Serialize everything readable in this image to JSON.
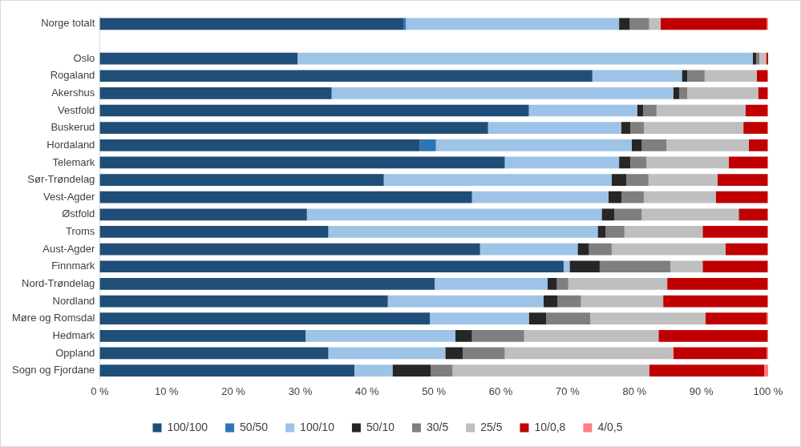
{
  "chart_data": {
    "type": "bar",
    "orientation": "horizontal",
    "stacked": true,
    "grid": false,
    "legend": "bottom",
    "categories": [
      "Norge totalt",
      null,
      "Oslo",
      "Rogaland",
      "Akershus",
      "Vestfold",
      "Buskerud",
      "Hordaland",
      "Telemark",
      "Sør-Trøndelag",
      "Vest-Agder",
      "Østfold",
      "Troms",
      "Aust-Agder",
      "Finnmark",
      "Nord-Trøndelag",
      "Nordland",
      "Møre og Romsdal",
      "Hedmark",
      "Oppland",
      "Sogn og Fjordane"
    ],
    "xlim": [
      0,
      100
    ],
    "xticks": [
      {
        "value": 0,
        "label": "0 %"
      },
      {
        "value": 10,
        "label": "10 %"
      },
      {
        "value": 20,
        "label": "20 %"
      },
      {
        "value": 30,
        "label": "30 %"
      },
      {
        "value": 40,
        "label": "40 %"
      },
      {
        "value": 50,
        "label": "50 %"
      },
      {
        "value": 60,
        "label": "60 %"
      },
      {
        "value": 70,
        "label": "70 %"
      },
      {
        "value": 80,
        "label": "80 %"
      },
      {
        "value": 90,
        "label": "90 %"
      },
      {
        "value": 100,
        "label": "100 %"
      }
    ],
    "series": [
      {
        "name": "100/100",
        "color": "#1f4e79",
        "values": [
          45.5,
          null,
          29.6,
          73.7,
          34.7,
          64.2,
          58.1,
          47.9,
          60.6,
          42.5,
          55.7,
          31.0,
          34.2,
          56.9,
          69.4,
          50.1,
          43.1,
          49.4,
          30.8,
          34.2,
          38.1
        ]
      },
      {
        "name": "50/50",
        "color": "#2e75b6",
        "values": [
          0.3,
          null,
          0,
          0,
          0,
          0,
          0,
          2.4,
          0,
          0,
          0,
          0,
          0,
          0,
          0,
          0,
          0,
          0,
          0,
          0,
          0
        ]
      },
      {
        "name": "100/10",
        "color": "#9dc3e6",
        "values": [
          31.9,
          null,
          68.1,
          13.4,
          51.1,
          16.2,
          19.9,
          29.3,
          17.1,
          34.1,
          20.4,
          44.1,
          40.3,
          14.6,
          0.9,
          16.9,
          23.3,
          14.8,
          22.4,
          17.5,
          5.7
        ]
      },
      {
        "name": "50/10",
        "color": "#262626",
        "values": [
          1.6,
          null,
          0.5,
          0.8,
          0.9,
          0.9,
          1.4,
          1.5,
          1.7,
          2.2,
          2.0,
          1.9,
          1.2,
          1.7,
          4.5,
          1.4,
          2.1,
          2.6,
          2.5,
          2.6,
          5.7
        ]
      },
      {
        "name": "30/5",
        "color": "#7f7f7f",
        "values": [
          2.9,
          null,
          0.5,
          2.6,
          1.2,
          2.0,
          2.0,
          3.7,
          2.4,
          3.3,
          3.3,
          4.1,
          2.8,
          3.4,
          10.6,
          1.7,
          3.5,
          6.6,
          7.8,
          6.3,
          3.3
        ]
      },
      {
        "name": "25/5",
        "color": "#bfbfbf",
        "values": [
          1.7,
          null,
          1.0,
          7.8,
          10.6,
          13.3,
          14.9,
          12.3,
          12.3,
          10.3,
          10.8,
          14.5,
          11.7,
          17.0,
          4.8,
          14.8,
          12.3,
          17.2,
          20.1,
          25.2,
          29.4
        ]
      },
      {
        "name": "10/0,8",
        "color": "#c00000",
        "values": [
          15.9,
          null,
          0.3,
          1.6,
          1.4,
          3.3,
          3.6,
          2.8,
          5.8,
          7.5,
          7.7,
          4.3,
          9.7,
          6.3,
          9.7,
          15.0,
          15.6,
          9.2,
          16.3,
          14.0,
          17.2
        ]
      },
      {
        "name": "4/0,5",
        "color": "#ff7c80",
        "values": [
          0.2,
          null,
          0,
          0.1,
          0.1,
          0.1,
          0.1,
          0.1,
          0.1,
          0.1,
          0.1,
          0.1,
          0.1,
          0.1,
          0.1,
          0.1,
          0.1,
          0.2,
          0.1,
          0.2,
          0.6
        ]
      }
    ]
  }
}
